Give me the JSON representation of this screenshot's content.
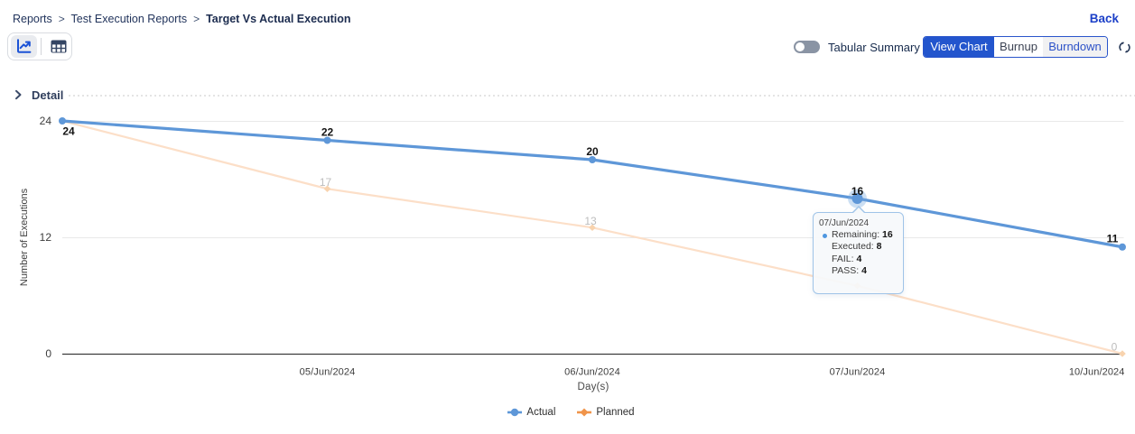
{
  "breadcrumb": {
    "separator": ">",
    "items": [
      "Reports",
      "Test Execution Reports"
    ],
    "current": "Target Vs Actual Execution"
  },
  "back": {
    "label": "Back"
  },
  "toolbar": {
    "view_icons": [
      {
        "name": "line-chart",
        "selected": true
      },
      {
        "name": "table",
        "selected": false
      }
    ],
    "toggle_label": "Tabular Summary",
    "toggle_state": "off",
    "segments": [
      {
        "label": "View Chart",
        "state": "active"
      },
      {
        "label": "Burnup",
        "state": "normal"
      },
      {
        "label": "Burndown",
        "state": "alt"
      }
    ],
    "refresh_icon": "refresh"
  },
  "section": {
    "title": "Detail"
  },
  "chart_data": {
    "type": "line",
    "title": "",
    "xlabel": "Day(s)",
    "ylabel": "Number of Executions",
    "ylim": [
      0,
      24
    ],
    "y_ticks": [
      0,
      12,
      24
    ],
    "grid": "horizontal",
    "legend_position": "bottom",
    "x_tick_labels": [
      "",
      "05/Jun/2024",
      "06/Jun/2024",
      "07/Jun/2024",
      "10/Jun/2024"
    ],
    "series": [
      {
        "name": "Planned",
        "values": [
          24,
          17,
          13,
          7,
          0
        ],
        "point_labels": [
          "",
          "17",
          "13",
          "",
          "0"
        ],
        "color": "#fcdfc8",
        "marker_color": "#f8d3ae",
        "legend_color": "#f0944a",
        "label_color": "#bdbdbd",
        "marker": "diamond"
      },
      {
        "name": "Actual",
        "values": [
          24,
          22,
          20,
          16,
          11
        ],
        "point_labels": [
          "24",
          "22",
          "20",
          "16",
          "11"
        ],
        "color": "#5e97d8",
        "marker_color": "#5e97d8",
        "legend_color": "#5e97d8",
        "label_color": "#141414",
        "marker": "circle"
      }
    ],
    "highlight": {
      "series": "Actual",
      "index": 3
    }
  },
  "tooltip": {
    "date": "07/Jun/2024",
    "rows": [
      {
        "label": "Remaining",
        "value": "16",
        "bullet": true
      },
      {
        "label": "Executed",
        "value": "8",
        "bullet": false
      },
      {
        "label": "FAIL",
        "value": "4",
        "bullet": false
      },
      {
        "label": "PASS",
        "value": "4",
        "bullet": false
      }
    ]
  },
  "colors": {
    "accent_blue": "#2355cd",
    "back_link": "#1c40c8",
    "actual_series": "#5e97d8",
    "planned_series": "#f0944a",
    "axis_text": "#3d3d3d"
  }
}
